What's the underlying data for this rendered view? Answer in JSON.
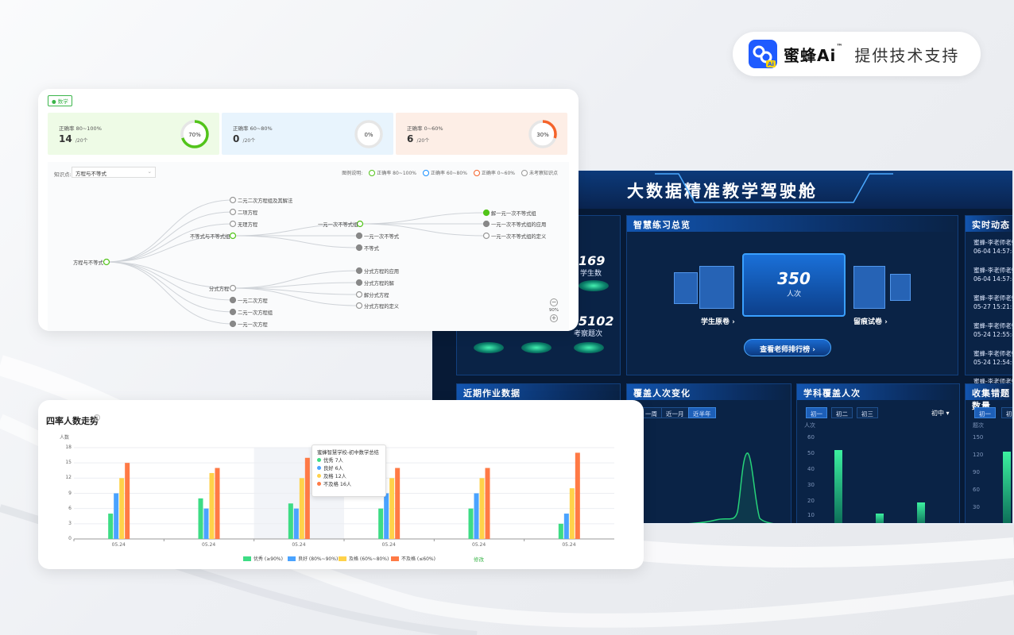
{
  "brand": {
    "name": "蜜蜂Ai",
    "tm": "™",
    "support": "提供技术支持",
    "logo_icon": "bee-ai-logo-icon",
    "accent": "#1f5bff"
  },
  "dashboard": {
    "title": "大数据精准教学驾驶舱",
    "left_stats": [
      {
        "value": "169",
        "label": "学生数"
      },
      {
        "value": "5102",
        "label": "考察题次"
      }
    ],
    "overview": {
      "title": "智慧练习总览",
      "count": "350",
      "count_label": "人次",
      "student_paper": "学生原卷",
      "error_paper": "留痕试卷",
      "rank_button": "查看老师排行榜"
    },
    "feed": {
      "title": "实时动态",
      "items": [
        {
          "name": "蜜蜂-李老师老师",
          "time": "06-04 14:57:40"
        },
        {
          "name": "蜜蜂-李老师老师",
          "time": "06-04 14:57:40"
        },
        {
          "name": "蜜蜂-李老师老师",
          "time": "05-27 15:21:37"
        },
        {
          "name": "蜜蜂-李老师老师",
          "time": "05-24 12:55:48"
        },
        {
          "name": "蜜蜂-李老师老师",
          "time": "05-24 12:54:05"
        },
        {
          "name": "蜜蜂-李老师老师",
          "time": ""
        }
      ]
    },
    "panels": {
      "recent_hw": "近期作业数据",
      "coverage_change": "覆盖人次变化",
      "subject_coverage": "学科覆盖人次",
      "error_collection": "收集错题数量"
    },
    "coverage_tabs": [
      "一周",
      "近一月",
      "近半年"
    ],
    "subject_tabs": [
      "初一",
      "初二",
      "初三"
    ],
    "subject_select": "初中",
    "subject_unit": "人次",
    "subject_ticks": [
      "60",
      "50",
      "40",
      "30",
      "20",
      "10"
    ],
    "error_tabs": [
      "初一",
      "初"
    ],
    "error_unit": "题次",
    "error_ticks": [
      "150",
      "120",
      "90",
      "60",
      "30"
    ]
  },
  "accuracy": {
    "subject_tag": "数学",
    "cards": [
      {
        "title": "正确率 80~100%",
        "value": "14",
        "unit": "/20个",
        "pct": "70%",
        "frac": 0.7,
        "color": "#52c41a",
        "bg": "#eefbe6"
      },
      {
        "title": "正确率 60~80%",
        "value": "0",
        "unit": "/20个",
        "pct": "0%",
        "frac": 0,
        "color": "#1890ff",
        "bg": "#e8f4fd"
      },
      {
        "title": "正确率 0~60%",
        "value": "6",
        "unit": "/20个",
        "pct": "30%",
        "frac": 0.3,
        "color": "#f5632a",
        "bg": "#fdeee6"
      }
    ],
    "kp_label": "知识点:",
    "kp_value": "方程与不等式",
    "legend_label": "图例说明:",
    "legend": [
      {
        "label": "正确率 80~100%",
        "color": "#52c41a"
      },
      {
        "label": "正确率 60~80%",
        "color": "#1890ff"
      },
      {
        "label": "正确率 0~60%",
        "color": "#f5632a"
      },
      {
        "label": "未考察知识点",
        "color": "#999999"
      }
    ],
    "tree": {
      "root": "方程与不等式",
      "level1": [
        "二元二次方程组及其解法",
        "二项方程",
        "无理方程",
        "不等式与不等式组",
        "分式方程",
        "一元二次方程",
        "二元一次方程组",
        "一元一次方程"
      ],
      "level2": [
        "一元一次不等式组",
        "一元一次不等式",
        "不等式",
        "分式方程的应用",
        "分式方程的解",
        "解分式方程",
        "分式方程的定义"
      ],
      "level3": [
        "解一元一次不等式组",
        "一元一次不等式组的应用",
        "一元一次不等式组的定义"
      ]
    },
    "zoom": "90%"
  },
  "trend": {
    "title": "四率人数走势",
    "info_icon": "info-icon",
    "tooltip": {
      "school": "蜜蜂智慧学校-初中数学总结",
      "rows": [
        {
          "label": "优秀",
          "value": "7人",
          "color": "#3ddc84"
        },
        {
          "label": "良好",
          "value": "6人",
          "color": "#4aa3ff"
        },
        {
          "label": "及格",
          "value": "12人",
          "color": "#ffd24a"
        },
        {
          "label": "不及格",
          "value": "16人",
          "color": "#ff7a45"
        }
      ]
    },
    "legend": [
      {
        "label": "优秀 (≥90%)",
        "color": "#3ddc84"
      },
      {
        "label": "良好 (80%~90%)",
        "color": "#4aa3ff"
      },
      {
        "label": "及格 (60%~80%)",
        "color": "#ffd24a"
      },
      {
        "label": "不及格 (≤60%)",
        "color": "#ff7a45"
      }
    ],
    "modify": "修改"
  },
  "chart_data": {
    "type": "bar",
    "ylabel": "人数",
    "ylim": [
      0,
      18
    ],
    "yticks": [
      0,
      3,
      6,
      9,
      12,
      15,
      18
    ],
    "categories": [
      "05.24",
      "05.24",
      "05.24",
      "05.24",
      "05.24",
      "05.24"
    ],
    "series": [
      {
        "name": "优秀 (≥90%)",
        "values": [
          5,
          8,
          7,
          6,
          6,
          3
        ]
      },
      {
        "name": "良好 (80%~90%)",
        "values": [
          9,
          6,
          6,
          9,
          9,
          5
        ]
      },
      {
        "name": "及格 (60%~80%)",
        "values": [
          12,
          13,
          12,
          12,
          12,
          10
        ]
      },
      {
        "name": "不及格 (≤60%)",
        "values": [
          15,
          14,
          16,
          14,
          14,
          17
        ]
      }
    ],
    "grid": true,
    "legend_position": "bottom"
  }
}
